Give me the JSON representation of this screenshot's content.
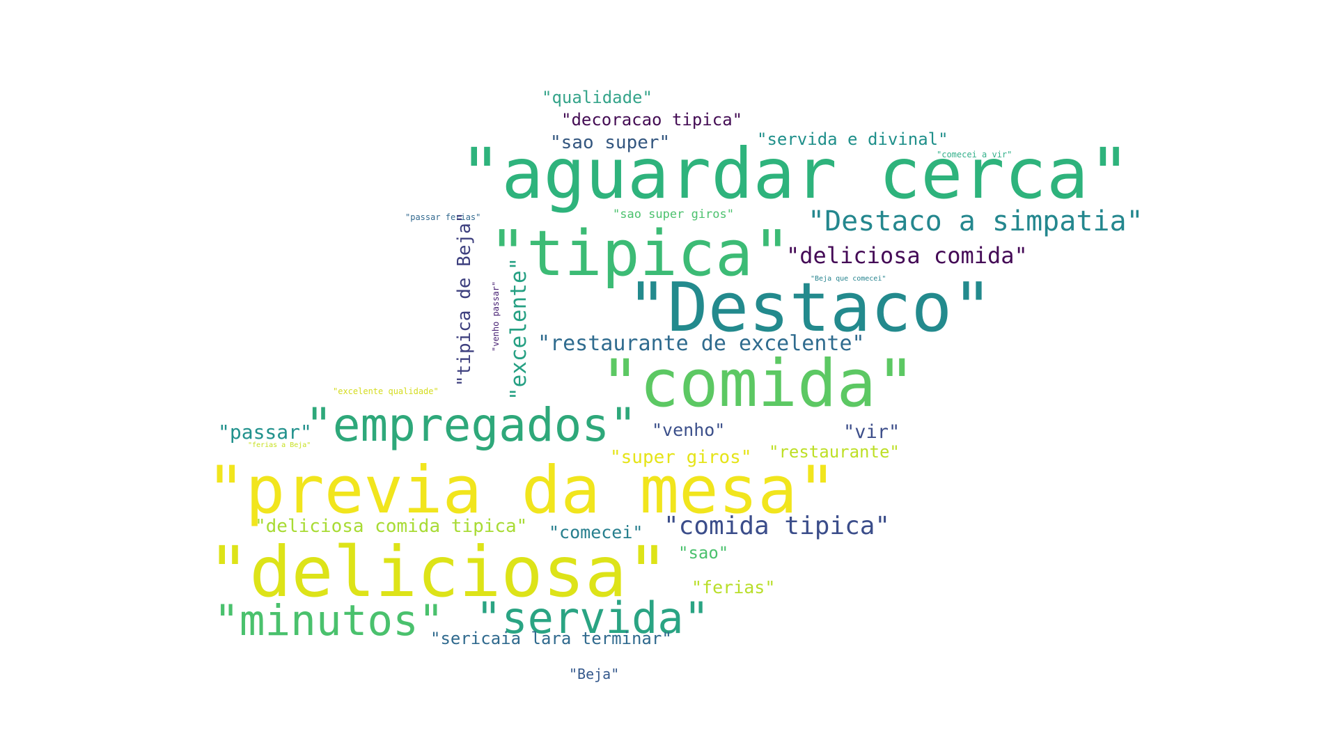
{
  "words": [
    {
      "text": "\"qualidade\"",
      "color": "#35a48a",
      "orientation": "horizontal"
    },
    {
      "text": "\"decoracao tipica\"",
      "color": "#440d54",
      "orientation": "horizontal"
    },
    {
      "text": "\"sao super\"",
      "color": "#33567f",
      "orientation": "horizontal"
    },
    {
      "text": "\"servida e divinal\"",
      "color": "#1f8f8a",
      "orientation": "horizontal"
    },
    {
      "text": "\"comecei a vir\"",
      "color": "#33b08a",
      "orientation": "horizontal"
    },
    {
      "text": "\"aguardar cerca\"",
      "color": "#2eb37c",
      "orientation": "horizontal"
    },
    {
      "text": "\"passar ferias\"",
      "color": "#31688e",
      "orientation": "horizontal"
    },
    {
      "text": "\"sao super giros\"",
      "color": "#4bc16d",
      "orientation": "horizontal"
    },
    {
      "text": "\"Destaco a simpatia\"",
      "color": "#24878e",
      "orientation": "horizontal"
    },
    {
      "text": "\"tipica\"",
      "color": "#3cbb75",
      "orientation": "horizontal"
    },
    {
      "text": "\"deliciosa comida\"",
      "color": "#440a56",
      "orientation": "horizontal"
    },
    {
      "text": "\"Beja que comecei\"",
      "color": "#25838e",
      "orientation": "horizontal"
    },
    {
      "text": "\"Destaco\"",
      "color": "#238a8d",
      "orientation": "horizontal"
    },
    {
      "text": "\"tipica de Beja\"",
      "color": "#3d3f7e",
      "orientation": "vertical"
    },
    {
      "text": "\"venho passar\"",
      "color": "#482173",
      "orientation": "vertical"
    },
    {
      "text": "\"excelente\"",
      "color": "#26a083",
      "orientation": "vertical"
    },
    {
      "text": "\"restaurante de excelente\"",
      "color": "#2f6b8e",
      "orientation": "horizontal"
    },
    {
      "text": "\"comida\"",
      "color": "#5cc863",
      "orientation": "horizontal"
    },
    {
      "text": "\"excelente qualidade\"",
      "color": "#d4dc1f",
      "orientation": "horizontal"
    },
    {
      "text": "\"passar\"",
      "color": "#21918c",
      "orientation": "horizontal"
    },
    {
      "text": "\"empregados\"",
      "color": "#2ea87a",
      "orientation": "horizontal"
    },
    {
      "text": "\"venho\"",
      "color": "#3b4f8a",
      "orientation": "horizontal"
    },
    {
      "text": "\"vir\"",
      "color": "#3d4e8a",
      "orientation": "horizontal"
    },
    {
      "text": "\"ferias a Beja\"",
      "color": "#c7e020",
      "orientation": "horizontal"
    },
    {
      "text": "\"super giros\"",
      "color": "#e5e419",
      "orientation": "horizontal"
    },
    {
      "text": "\"restaurante\"",
      "color": "#bddf26",
      "orientation": "horizontal"
    },
    {
      "text": "\"previa da mesa\"",
      "color": "#f1e51d",
      "orientation": "horizontal"
    },
    {
      "text": "\"deliciosa comida tipica\"",
      "color": "#a8db34",
      "orientation": "horizontal"
    },
    {
      "text": "\"comecei\"",
      "color": "#277f8e",
      "orientation": "horizontal"
    },
    {
      "text": "\"comida tipica\"",
      "color": "#3b4d8a",
      "orientation": "horizontal"
    },
    {
      "text": "\"sao\"",
      "color": "#4ac16d",
      "orientation": "horizontal"
    },
    {
      "text": "\"deliciosa\"",
      "color": "#dde318",
      "orientation": "horizontal"
    },
    {
      "text": "\"ferias\"",
      "color": "#b8de29",
      "orientation": "horizontal"
    },
    {
      "text": "\"minutos\"",
      "color": "#4ac16d",
      "orientation": "horizontal"
    },
    {
      "text": "\"servida\"",
      "color": "#2aa483",
      "orientation": "horizontal"
    },
    {
      "text": "\"sericaia lara terminar\"",
      "color": "#306a8e",
      "orientation": "horizontal"
    },
    {
      "text": "\"Beja\"",
      "color": "#35598c",
      "orientation": "horizontal"
    }
  ]
}
